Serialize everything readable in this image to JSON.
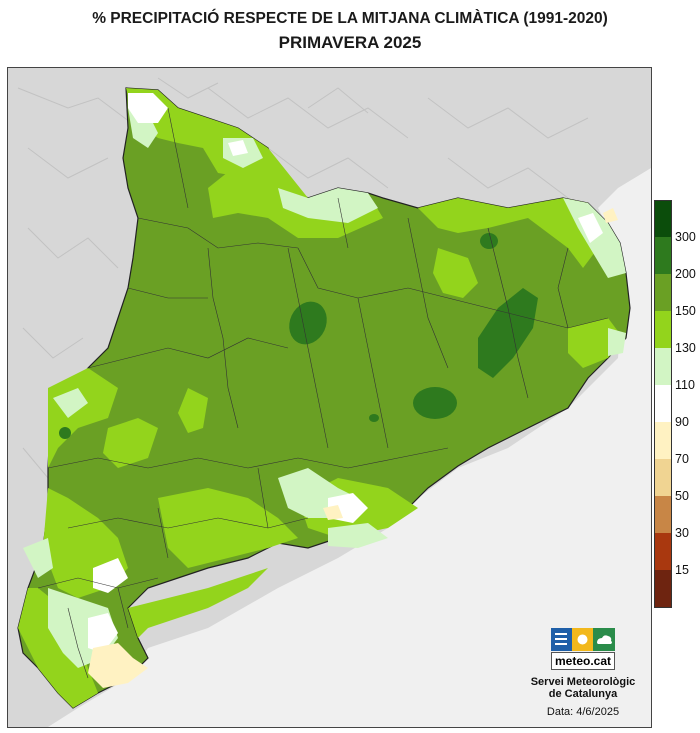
{
  "title": {
    "line1": "% PRECIPITACIÓ RESPECTE DE LA MITJANA CLIMÀTICA (1991-2020)",
    "line2": "PRIMAVERA 2025"
  },
  "legend": {
    "breaks": [
      "300",
      "200",
      "150",
      "130",
      "110",
      "90",
      "70",
      "50",
      "30",
      "15"
    ],
    "colors": [
      "#0b4d0b",
      "#2e7a1e",
      "#6aa024",
      "#93d41c",
      "#d2f5c4",
      "#ffffff",
      "#fff2c2",
      "#f0d492",
      "#c88646",
      "#a9380f",
      "#6e2410"
    ]
  },
  "map_colors": {
    "background": "#d8d8d8",
    "sea": "#f0f0f0",
    "base": "#6aa024",
    "boundaries": "#333333"
  },
  "logo": {
    "text": "meteo.cat",
    "icon": "meteocat-weather-icons"
  },
  "footer": {
    "org_line1": "Servei Meteorològic",
    "org_line2": "de Catalunya",
    "date": "Data: 4/6/2025"
  }
}
